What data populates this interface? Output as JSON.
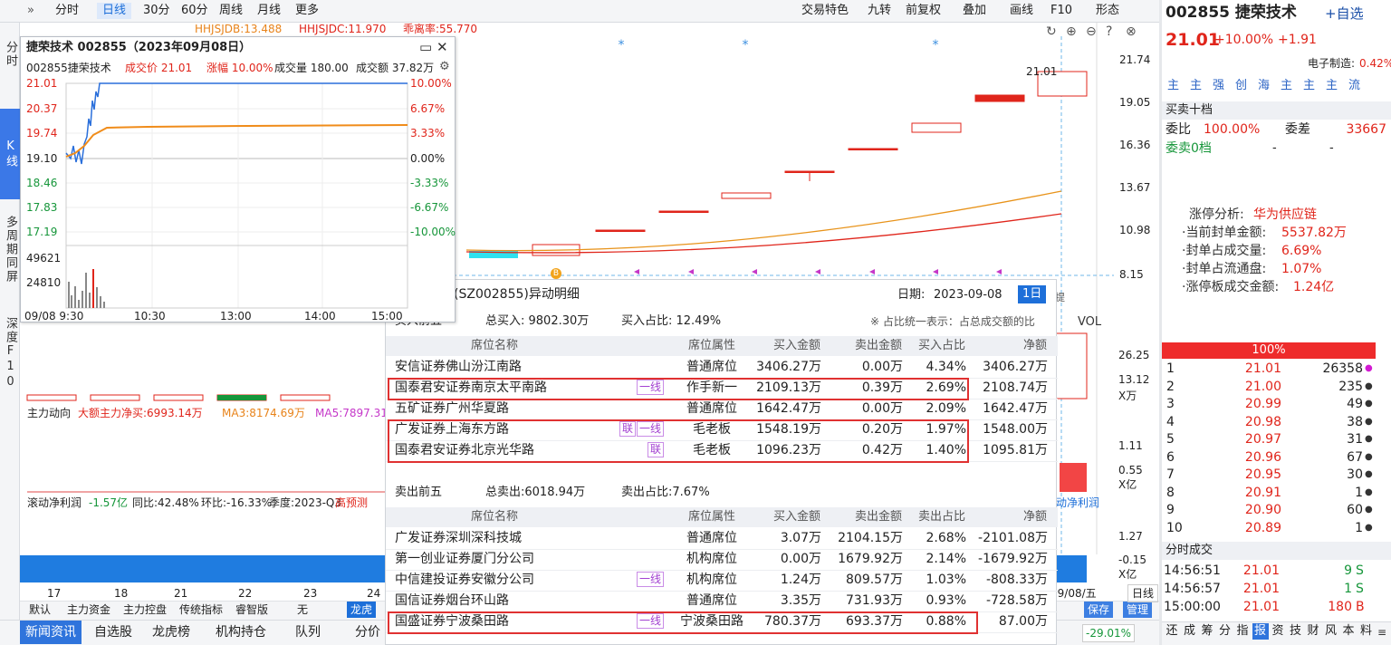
{
  "toolbar": {
    "periods": [
      "分时",
      "日线",
      "30分",
      "60分",
      "周线",
      "月线",
      "更多"
    ],
    "active_period": 1,
    "tools": [
      "交易特色",
      "九转",
      "前复权",
      "叠加",
      "画线",
      "F10",
      "形态"
    ]
  },
  "side_tabs": [
    "分时",
    "K线",
    "多周期同屏",
    "深度F10"
  ],
  "active_side_tab": 1,
  "kline": {
    "indicators": [
      "HHJSJDB:13.488",
      "HHJSJDC:11.970",
      "乖离率:55.770"
    ],
    "price_axis": [
      "21.74",
      "19.05",
      "16.36",
      "13.67",
      "10.98",
      "8.15"
    ],
    "high_label": "21.01",
    "marker": "B",
    "tag": "提",
    "vol": {
      "label": "VOL",
      "axis": [
        "26.25",
        "13.12",
        "X万"
      ]
    },
    "main_force": {
      "label": "主力动向",
      "items": [
        "大额主力净买:6993.14万",
        "MA3:8174.69万",
        "MA5:7897.31"
      ],
      "axis": [
        "1.11",
        "0.55",
        "X亿"
      ],
      "tail": "动净利润"
    },
    "profit": {
      "label": "滚动净利润",
      "value": "-1.57亿",
      "items": [
        "同比:42.48%",
        "环比:-16.33%",
        "季度:2023-Q3",
        "高预测"
      ],
      "axis": [
        "1.27",
        "-0.15",
        "X亿"
      ]
    },
    "dates": [
      "17",
      "18",
      "21",
      "22",
      "23",
      "24"
    ],
    "last_date": "09/08/五",
    "buttons": [
      "默认",
      "主力资金",
      "主力控盘",
      "传统指标",
      "睿智版",
      "无",
      "龙虎"
    ],
    "right_buttons": [
      "保存",
      "管理"
    ],
    "period_button": "日线"
  },
  "bottom_tabs": [
    "新闻资讯",
    "自选股",
    "龙虎榜",
    "机构持仓",
    "队列",
    "分价"
  ],
  "bottom_change": "-29.01%",
  "intraday": {
    "title": "捷荣技术 002855（2023年09月08日）",
    "info": [
      "002855捷荣技术",
      "成交价 21.01",
      "涨幅 10.00%",
      "成交量 180.00",
      "成交额 37.82万"
    ],
    "price_axis": [
      "21.01",
      "20.37",
      "19.74",
      "19.10",
      "18.46",
      "17.83",
      "17.19"
    ],
    "pct_axis": [
      "10.00%",
      "6.67%",
      "3.33%",
      "0.00%",
      "-3.33%",
      "-6.67%",
      "-10.00%"
    ],
    "vol_axis": [
      "49621",
      "24810"
    ],
    "times": [
      "09/08 9:30",
      "10:30",
      "13:00",
      "14:00",
      "15:00"
    ]
  },
  "dragon_tiger": {
    "title": "(SZ002855)异动明细",
    "date_label": "日期:",
    "date": "2023-09-08",
    "range": "1日",
    "note": "※ 占比统一表示：占总成交额的比",
    "buy": {
      "title": "买入前五",
      "total": "总买入: 9802.30万",
      "ratio": "买入占比: 12.49%",
      "headers": [
        "席位名称",
        "席位属性",
        "买入金额",
        "卖出金额",
        "买入占比",
        "净额"
      ],
      "rows": [
        {
          "name": "安信证券佛山汾江南路",
          "tags": [],
          "attr": "普通席位",
          "buy": "3406.27万",
          "sell": "0.00万",
          "pct": "4.34%",
          "net": "3406.27万"
        },
        {
          "name": "国泰君安证券南京太平南路",
          "tags": [
            "一线"
          ],
          "attr": "作手新一",
          "buy": "2109.13万",
          "sell": "0.39万",
          "pct": "2.69%",
          "net": "2108.74万"
        },
        {
          "name": "五矿证券广州华夏路",
          "tags": [],
          "attr": "普通席位",
          "buy": "1642.47万",
          "sell": "0.00万",
          "pct": "2.09%",
          "net": "1642.47万"
        },
        {
          "name": "广发证券上海东方路",
          "tags": [
            "联",
            "一线"
          ],
          "attr": "毛老板",
          "buy": "1548.19万",
          "sell": "0.20万",
          "pct": "1.97%",
          "net": "1548.00万"
        },
        {
          "name": "国泰君安证券北京光华路",
          "tags": [
            "联"
          ],
          "attr": "毛老板",
          "buy": "1096.23万",
          "sell": "0.42万",
          "pct": "1.40%",
          "net": "1095.81万"
        }
      ],
      "highlighted": [
        [
          1,
          1
        ],
        [
          3,
          4
        ]
      ]
    },
    "sell": {
      "title": "卖出前五",
      "total": "总卖出:6018.94万",
      "ratio": "卖出占比:7.67%",
      "headers": [
        "席位名称",
        "席位属性",
        "买入金额",
        "卖出金额",
        "卖出占比",
        "净额"
      ],
      "rows": [
        {
          "name": "广发证券深圳深科技城",
          "tags": [],
          "attr": "普通席位",
          "buy": "3.07万",
          "sell": "2104.15万",
          "pct": "2.68%",
          "net": "-2101.08万"
        },
        {
          "name": "第一创业证券厦门分公司",
          "tags": [],
          "attr": "机构席位",
          "buy": "0.00万",
          "sell": "1679.92万",
          "pct": "2.14%",
          "net": "-1679.92万"
        },
        {
          "name": "中信建投证券安徽分公司",
          "tags": [
            "一线"
          ],
          "attr": "机构席位",
          "buy": "1.24万",
          "sell": "809.57万",
          "pct": "1.03%",
          "net": "-808.33万"
        },
        {
          "name": "国信证券烟台环山路",
          "tags": [],
          "attr": "普通席位",
          "buy": "3.35万",
          "sell": "731.93万",
          "pct": "0.93%",
          "net": "-728.58万"
        },
        {
          "name": "国盛证券宁波桑田路",
          "tags": [
            "一线"
          ],
          "attr": "宁波桑田路",
          "buy": "780.37万",
          "sell": "693.37万",
          "pct": "0.88%",
          "net": "87.00万"
        }
      ],
      "highlighted": [
        [
          4,
          4
        ]
      ]
    }
  },
  "quote": {
    "code_name": "002855 捷荣技术",
    "add": "+自选",
    "price": "21.01",
    "change_pct": "+10.00%",
    "change": "+1.91",
    "sector": "电子制造:",
    "sector_pct": "0.42%",
    "tags": [
      "主",
      "主",
      "强",
      "创",
      "海",
      "主",
      "主",
      "主",
      "流"
    ],
    "book_title": "买卖十档",
    "wb_label": "委比",
    "wb": "100.00%",
    "wc_label": "委差",
    "wc": "33667",
    "ask_label": "委卖0档",
    "ask_vals": [
      "-",
      "-"
    ],
    "analysis": [
      [
        "涨停分析:",
        "华为供应链"
      ],
      [
        "·当前封单金额:",
        "5537.82万"
      ],
      [
        "·封单占成交量:",
        "6.69%"
      ],
      [
        "·封单占流通盘:",
        "1.07%"
      ],
      [
        "·涨停板成交金额:",
        "1.24亿"
      ]
    ],
    "bar": "100%",
    "bids": [
      [
        "1",
        "21.01",
        "26358"
      ],
      [
        "2",
        "21.00",
        "235"
      ],
      [
        "3",
        "20.99",
        "49"
      ],
      [
        "4",
        "20.98",
        "38"
      ],
      [
        "5",
        "20.97",
        "31"
      ],
      [
        "6",
        "20.96",
        "67"
      ],
      [
        "7",
        "20.95",
        "30"
      ],
      [
        "8",
        "20.91",
        "1"
      ],
      [
        "9",
        "20.90",
        "60"
      ],
      [
        "10",
        "20.89",
        "1"
      ]
    ],
    "trades_title": "分时成交",
    "trades": [
      [
        "14:56:51",
        "21.01",
        "9",
        "S"
      ],
      [
        "14:56:57",
        "21.01",
        "1",
        "S"
      ],
      [
        "15:00:00",
        "21.01",
        "180",
        "B"
      ]
    ],
    "tools": [
      "还",
      "成",
      "筹",
      "分",
      "指",
      "报",
      "资",
      "技",
      "财",
      "风",
      "本",
      "料"
    ],
    "active_tool": 5
  }
}
